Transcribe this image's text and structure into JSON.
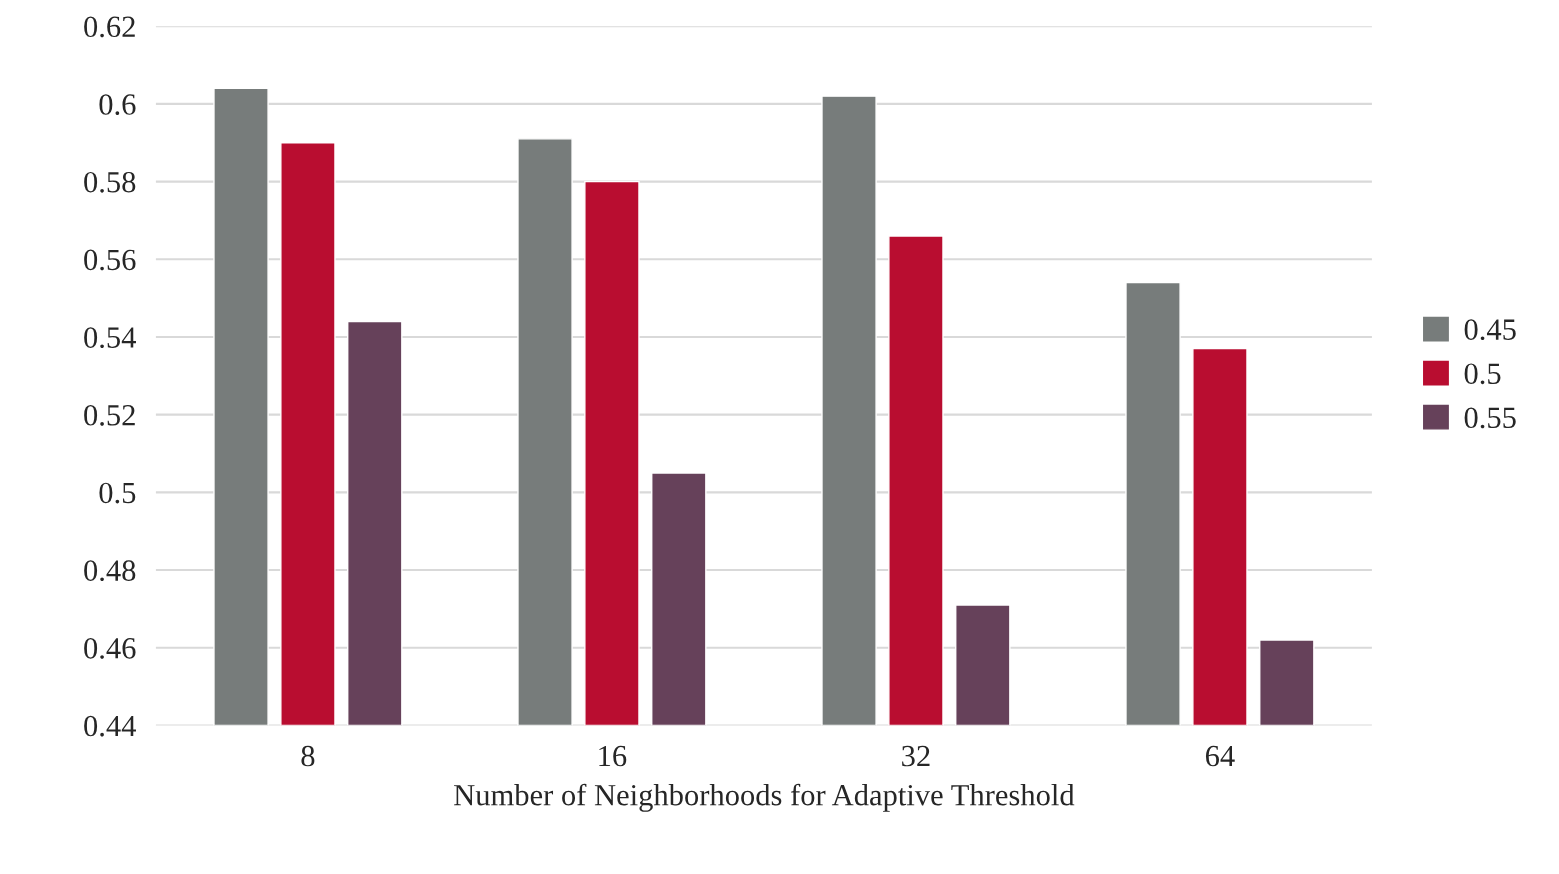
{
  "chart_data": {
    "type": "bar",
    "xlabel": "Number of Neighborhoods for Adaptive Threshold",
    "categories": [
      "8",
      "16",
      "32",
      "64"
    ],
    "series": [
      {
        "name": "0.45",
        "color": "#777c7b",
        "values": [
          0.604,
          0.591,
          0.602,
          0.554
        ]
      },
      {
        "name": "0.5",
        "color": "#b90d30",
        "values": [
          0.59,
          0.58,
          0.566,
          0.537
        ]
      },
      {
        "name": "0.55",
        "color": "#66415a",
        "values": [
          0.544,
          0.505,
          0.471,
          0.462
        ]
      }
    ],
    "ylim": [
      0.44,
      0.62
    ],
    "yticks": [
      0.44,
      0.46,
      0.48,
      0.5,
      0.52,
      0.54,
      0.56,
      0.58,
      0.6,
      0.62
    ],
    "grid": "y",
    "legend": "right"
  }
}
